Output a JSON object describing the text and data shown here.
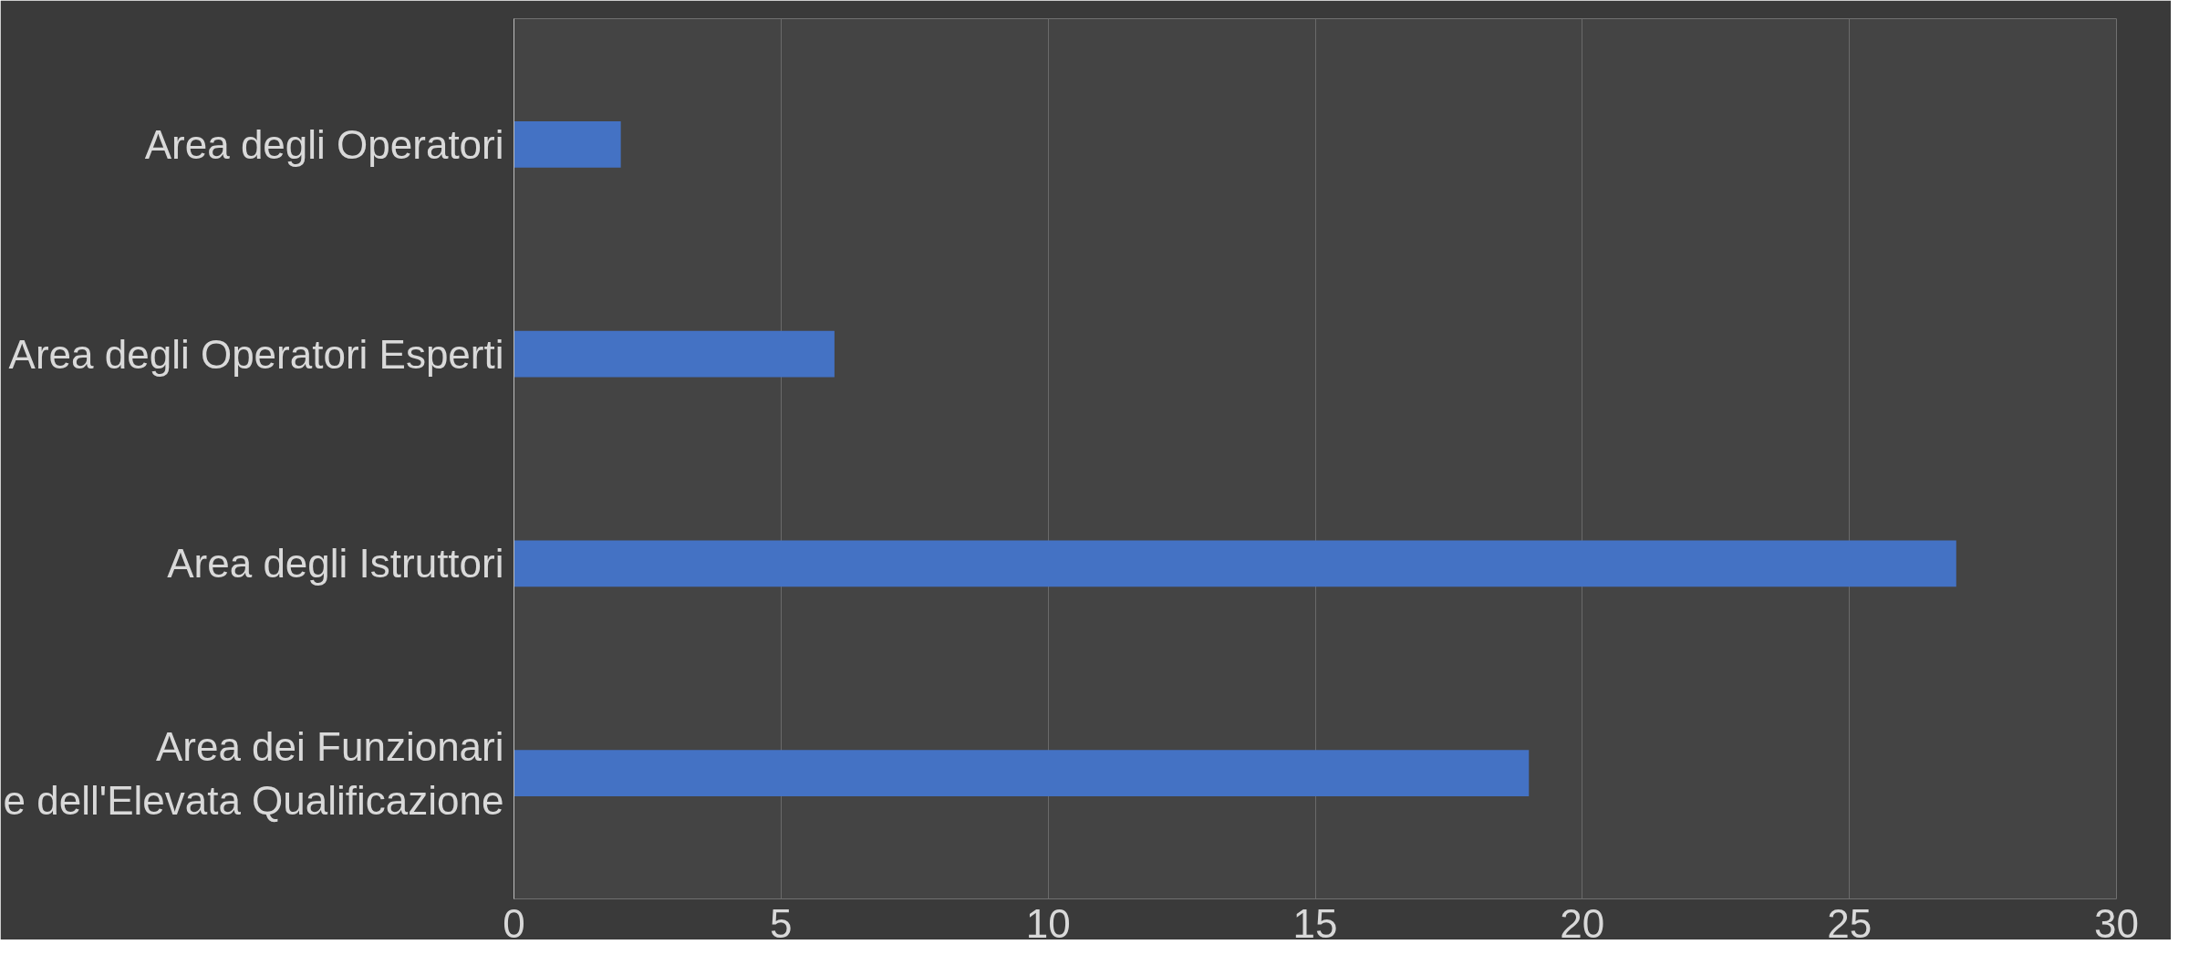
{
  "chart_data": {
    "type": "bar",
    "orientation": "horizontal",
    "categories": [
      "Area degli Operatori",
      "Area degli Operatori Esperti",
      "Area degli Istruttori",
      "Area dei Funzionari\ne dell'Elevata Qualificazione"
    ],
    "values": [
      2,
      6,
      27,
      19
    ],
    "color": "#4472c4",
    "xlim": [
      0,
      30
    ],
    "xticks": [
      0,
      5,
      10,
      15,
      20,
      25,
      30
    ],
    "grid": "x"
  }
}
